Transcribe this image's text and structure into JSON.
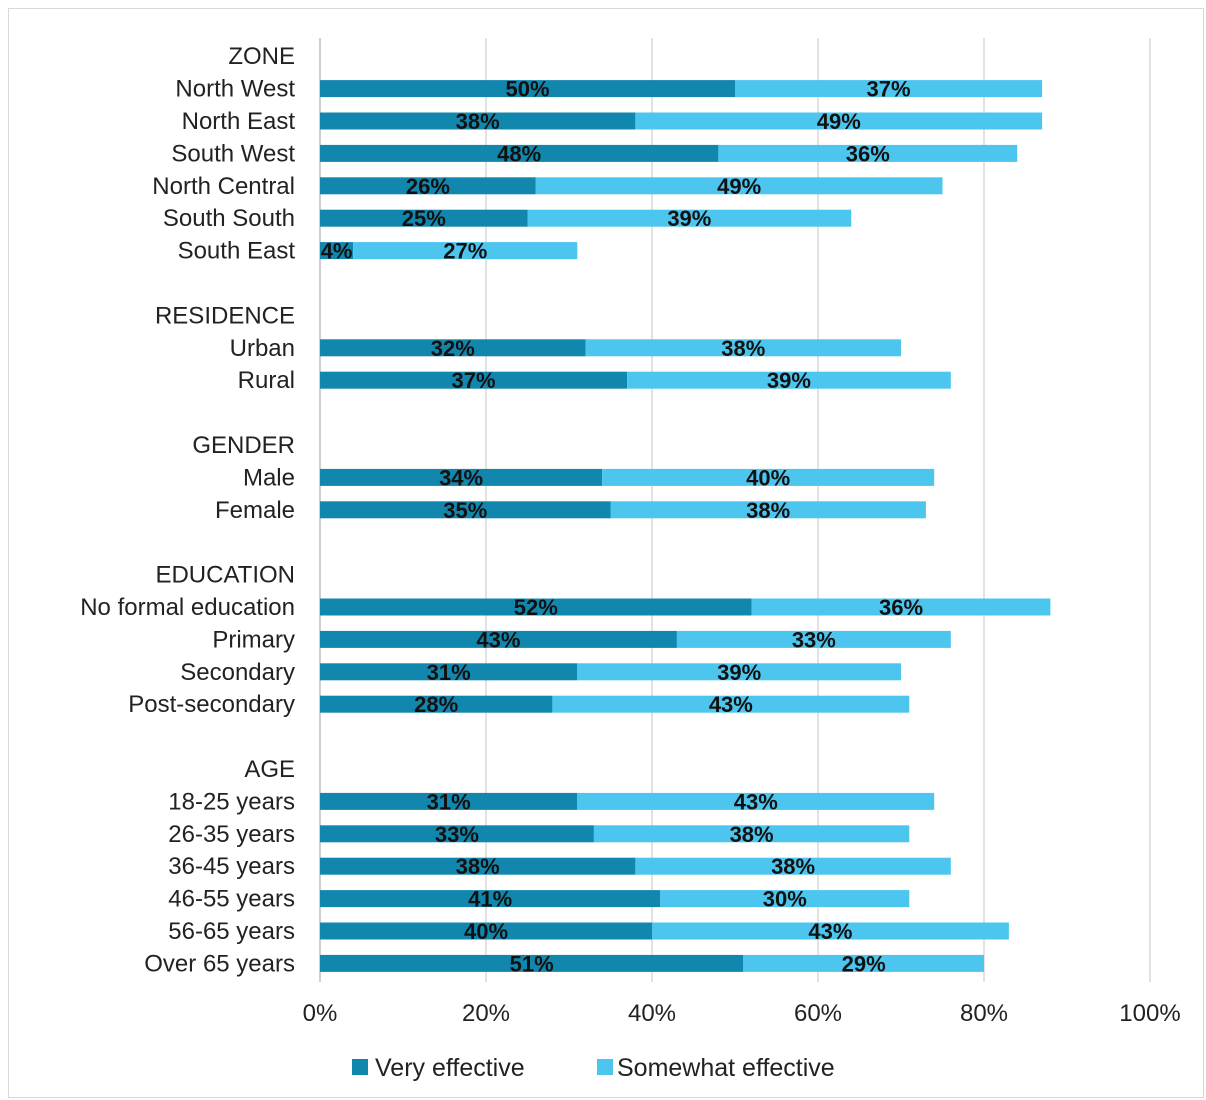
{
  "chart_data": {
    "type": "bar",
    "orientation": "horizontal",
    "stacked": true,
    "title": "",
    "xlabel": "",
    "ylabel": "",
    "xlim": [
      0,
      100
    ],
    "x_ticks": [
      "0%",
      "20%",
      "40%",
      "60%",
      "80%",
      "100%"
    ],
    "grid": "vertical",
    "legend_position": "bottom",
    "series": [
      {
        "name": "Very effective",
        "color": "#1287AE"
      },
      {
        "name": "Somewhat effective",
        "color": "#4CC6EE"
      }
    ],
    "rows": [
      {
        "label": "ZONE",
        "header": true
      },
      {
        "label": "North West",
        "values": [
          50,
          37
        ]
      },
      {
        "label": "North East",
        "values": [
          38,
          49
        ]
      },
      {
        "label": "South West",
        "values": [
          48,
          36
        ]
      },
      {
        "label": "North Central",
        "values": [
          26,
          49
        ]
      },
      {
        "label": "South South",
        "values": [
          25,
          39
        ]
      },
      {
        "label": "South East",
        "values": [
          4,
          27
        ]
      },
      {
        "label": "",
        "spacer": true
      },
      {
        "label": "RESIDENCE",
        "header": true
      },
      {
        "label": "Urban",
        "values": [
          32,
          38
        ]
      },
      {
        "label": "Rural",
        "values": [
          37,
          39
        ]
      },
      {
        "label": "",
        "spacer": true
      },
      {
        "label": "GENDER",
        "header": true
      },
      {
        "label": "Male",
        "values": [
          34,
          40
        ]
      },
      {
        "label": "Female",
        "values": [
          35,
          38
        ]
      },
      {
        "label": "",
        "spacer": true
      },
      {
        "label": "EDUCATION",
        "header": true
      },
      {
        "label": "No formal education",
        "values": [
          52,
          36
        ]
      },
      {
        "label": "Primary",
        "values": [
          43,
          33
        ]
      },
      {
        "label": "Secondary",
        "values": [
          31,
          39
        ]
      },
      {
        "label": "Post-secondary",
        "values": [
          28,
          43
        ]
      },
      {
        "label": "",
        "spacer": true
      },
      {
        "label": "AGE",
        "header": true
      },
      {
        "label": "18-25 years",
        "values": [
          31,
          43
        ]
      },
      {
        "label": "26-35 years",
        "values": [
          33,
          38
        ]
      },
      {
        "label": "36-45 years",
        "values": [
          38,
          38
        ]
      },
      {
        "label": "46-55 years",
        "values": [
          41,
          30
        ]
      },
      {
        "label": "56-65 years",
        "values": [
          40,
          43
        ]
      },
      {
        "label": "Over 65 years",
        "values": [
          51,
          29
        ]
      }
    ]
  }
}
